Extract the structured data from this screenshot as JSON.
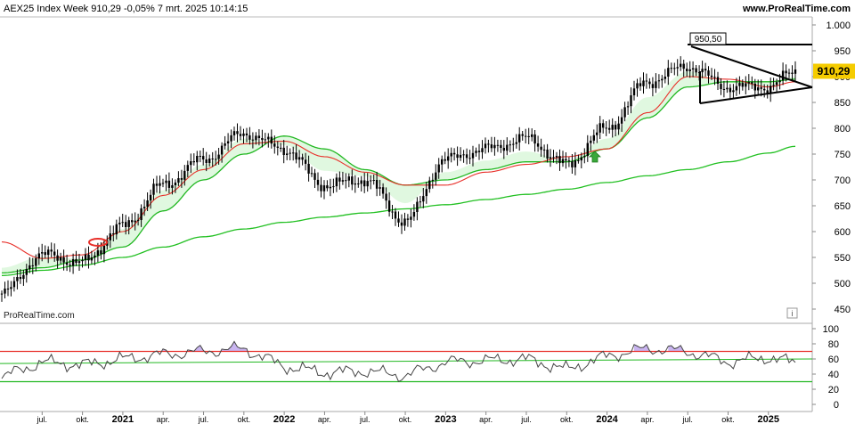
{
  "header": {
    "title": "AEX25 Index Week 910,29 -0,05% 7 mrt. 2025 10:14:15",
    "site": "www.ProRealTime.com"
  },
  "watermark": "ProRealTime.com",
  "info_icon": "info-icon",
  "price_label": "910,29",
  "peak_label": "950,50",
  "colors": {
    "candles": "#000000",
    "ma_fast": "#e8302a",
    "ma_mid": "#22b822",
    "ma_slow": "#22c022",
    "cloud_fill": "#d6f5d6",
    "rsi_line": "#444444",
    "rsi_overbought_fill": "#c9b5f0",
    "price_tag": "#f5cc00",
    "arrow": "#3aa83a"
  },
  "chart_data": [
    {
      "type": "candlestick",
      "title": "AEX25 Index Week",
      "ylim": [
        450,
        1000
      ],
      "y_ticks": [
        "1.000",
        "950",
        "900",
        "850",
        "800",
        "750",
        "700",
        "650",
        "600",
        "550",
        "500",
        "450"
      ],
      "last_value": 910.29,
      "annotations": [
        "950,50",
        "910,29"
      ],
      "series": [
        {
          "name": "",
          "role": "close",
          "x": [
            "2020-04",
            "2020-07",
            "2020-10",
            "2021-01",
            "2021-04",
            "2021-07",
            "2021-10",
            "2022-01",
            "2022-04",
            "2022-07",
            "2022-10",
            "2023-01",
            "2023-04",
            "2023-07",
            "2023-10",
            "2024-01",
            "2024-04",
            "2024-07",
            "2024-10",
            "2025-01",
            "2025-03"
          ],
          "values": [
            480,
            555,
            540,
            610,
            690,
            740,
            790,
            760,
            690,
            700,
            620,
            740,
            760,
            780,
            730,
            800,
            890,
            920,
            880,
            880,
            910
          ]
        },
        {
          "name": "",
          "role": "ma_fast",
          "x": [
            "2020-04",
            "2020-07",
            "2020-10",
            "2021-01",
            "2021-04",
            "2021-07",
            "2021-10",
            "2022-01",
            "2022-04",
            "2022-07",
            "2022-10",
            "2023-01",
            "2023-04",
            "2023-07",
            "2023-10",
            "2024-01",
            "2024-04",
            "2024-07",
            "2024-10",
            "2025-01",
            "2025-03"
          ],
          "values": [
            580,
            548,
            555,
            600,
            670,
            720,
            770,
            775,
            745,
            715,
            690,
            690,
            715,
            730,
            745,
            760,
            830,
            900,
            895,
            880,
            890
          ]
        },
        {
          "name": "",
          "role": "ma_mid",
          "x": [
            "2020-04",
            "2020-07",
            "2020-10",
            "2021-01",
            "2021-04",
            "2021-07",
            "2021-10",
            "2022-01",
            "2022-04",
            "2022-07",
            "2022-10",
            "2023-01",
            "2023-04",
            "2023-07",
            "2023-10",
            "2024-01",
            "2024-04",
            "2024-07",
            "2024-10",
            "2025-01",
            "2025-03"
          ],
          "values": [
            520,
            530,
            545,
            570,
            640,
            700,
            750,
            785,
            760,
            720,
            690,
            700,
            720,
            735,
            735,
            760,
            820,
            880,
            890,
            890,
            895
          ]
        },
        {
          "name": "",
          "role": "ma_slow",
          "x": [
            "2020-04",
            "2020-07",
            "2020-10",
            "2021-01",
            "2021-04",
            "2021-07",
            "2021-10",
            "2022-01",
            "2022-04",
            "2022-07",
            "2022-10",
            "2023-01",
            "2023-04",
            "2023-07",
            "2023-10",
            "2024-01",
            "2024-04",
            "2024-07",
            "2024-10",
            "2025-01",
            "2025-03"
          ],
          "values": [
            515,
            525,
            535,
            550,
            570,
            590,
            605,
            618,
            628,
            636,
            644,
            652,
            662,
            672,
            682,
            695,
            708,
            720,
            735,
            752,
            765
          ]
        }
      ]
    },
    {
      "type": "line",
      "title": "RSI",
      "ylim": [
        0,
        100
      ],
      "y_ticks": [
        "100",
        "80",
        "60",
        "40",
        "20",
        "0"
      ],
      "reference_lines": [
        70,
        30
      ],
      "series": [
        {
          "name": "",
          "x": [
            "2020-04",
            "2020-07",
            "2020-10",
            "2021-01",
            "2021-04",
            "2021-07",
            "2021-10",
            "2022-01",
            "2022-04",
            "2022-07",
            "2022-10",
            "2023-01",
            "2023-04",
            "2023-07",
            "2023-10",
            "2024-01",
            "2024-04",
            "2024-07",
            "2024-10",
            "2025-01",
            "2025-03"
          ],
          "values": [
            36,
            56,
            52,
            60,
            66,
            70,
            74,
            50,
            42,
            44,
            38,
            56,
            58,
            60,
            46,
            64,
            74,
            70,
            56,
            62,
            55
          ]
        }
      ]
    }
  ],
  "x_axis": {
    "labels": [
      "jul.",
      "okt.",
      "2021",
      "apr.",
      "jul.",
      "okt.",
      "2022",
      "apr.",
      "jul.",
      "okt.",
      "2023",
      "apr.",
      "jul.",
      "okt.",
      "2024",
      "apr.",
      "jul.",
      "okt.",
      "2025"
    ],
    "bold": [
      false,
      false,
      true,
      false,
      false,
      false,
      true,
      false,
      false,
      false,
      true,
      false,
      false,
      false,
      true,
      false,
      false,
      false,
      true
    ]
  }
}
